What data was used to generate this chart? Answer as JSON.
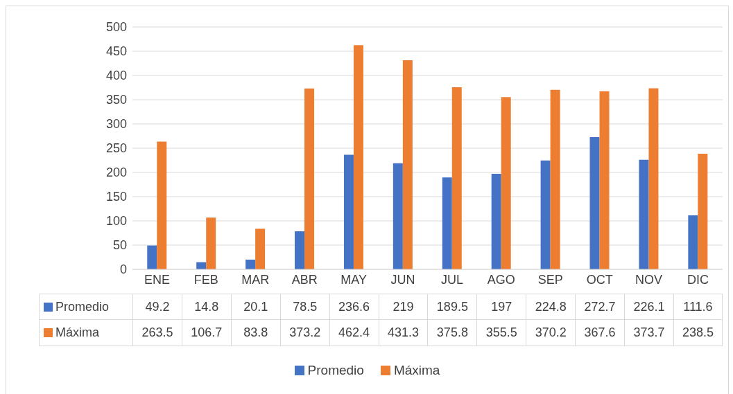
{
  "chart_data": {
    "type": "bar",
    "categories": [
      "ENE",
      "FEB",
      "MAR",
      "ABR",
      "MAY",
      "JUN",
      "JUL",
      "AGO",
      "SEP",
      "OCT",
      "NOV",
      "DIC"
    ],
    "series": [
      {
        "name": "Promedio",
        "color": "#4472c4",
        "values": [
          49.2,
          14.8,
          20.1,
          78.5,
          236.6,
          219,
          189.5,
          197,
          224.8,
          272.7,
          226.1,
          111.6
        ]
      },
      {
        "name": "Máxima",
        "color": "#ed7d31",
        "values": [
          263.5,
          106.7,
          83.8,
          373.2,
          462.4,
          431.3,
          375.8,
          355.5,
          370.2,
          367.6,
          373.7,
          238.5
        ]
      }
    ],
    "ylim": [
      0,
      500
    ],
    "yticks": [
      0,
      50,
      100,
      150,
      200,
      250,
      300,
      350,
      400,
      450,
      500
    ],
    "grid": "y",
    "legend": "bottom",
    "data_labels": true
  }
}
